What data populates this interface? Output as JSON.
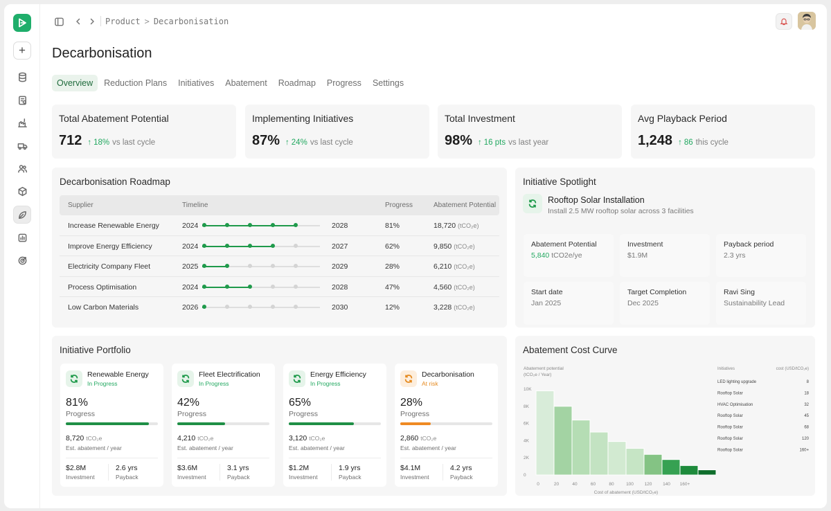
{
  "breadcrumb": {
    "parent": "Product",
    "current": "Decarbonisation"
  },
  "page": {
    "title": "Decarbonisation"
  },
  "tabs": [
    "Overview",
    "Reduction Plans",
    "Initiatives",
    "Abatement",
    "Roadmap",
    "Progress",
    "Settings"
  ],
  "kpis": [
    {
      "title": "Total Abatement Potential",
      "value": "712",
      "delta": "18%",
      "compare": "vs last cycle"
    },
    {
      "title": "Implementing Initiatives",
      "value": "87%",
      "delta": "24%",
      "compare": "vs last cycle"
    },
    {
      "title": "Total Investment",
      "value": "98%",
      "delta": "16 pts",
      "compare": "vs last year"
    },
    {
      "title": "Avg Playback Period",
      "value": "1,248",
      "delta": "86",
      "compare": "this cycle"
    }
  ],
  "roadmap": {
    "title": "Decarbonisation Roadmap",
    "columns": [
      "Supplier",
      "Timeline",
      "Progress",
      "Abatement Potential"
    ],
    "unit": "(tCO₂e)",
    "rows": [
      {
        "name": "Increase Renewable Energy",
        "start": "2024",
        "end": "2028",
        "progress": "81%",
        "abatement": "18,720",
        "milestones_done": 5
      },
      {
        "name": "Improve Energy Efficiency",
        "start": "2024",
        "end": "2027",
        "progress": "62%",
        "abatement": "9,850",
        "milestones_done": 4
      },
      {
        "name": "Electricity Company Fleet",
        "start": "2025",
        "end": "2029",
        "progress": "28%",
        "abatement": "6,210",
        "milestones_done": 2
      },
      {
        "name": "Process Optimisation",
        "start": "2024",
        "end": "2028",
        "progress": "47%",
        "abatement": "4,560",
        "milestones_done": 3
      },
      {
        "name": "Low Carbon Materials",
        "start": "2026",
        "end": "2030",
        "progress": "12%",
        "abatement": "3,228",
        "milestones_done": 1
      }
    ]
  },
  "spotlight": {
    "title": "Initiative Spotlight",
    "name": "Rooftop Solar Installation",
    "description": "Install 2.5 MW rooftop solar across 3 facilities",
    "abatement_label": "Abatement Potential",
    "abatement_value": "5,840",
    "abatement_unit": "tCO2e/ye",
    "investment_label": "Investment",
    "investment_value": "$1.9M",
    "payback_label": "Payback period",
    "payback_value": "2.3 yrs",
    "start_label": "Start date",
    "start_value": "Jan 2025",
    "target_label": "Target Completion",
    "target_value": "Dec 2025",
    "owner_name": "Ravi Sing",
    "owner_role": "Sustainability Lead"
  },
  "portfolio": {
    "title": "Initiative Portfolio",
    "progress_label": "Progress",
    "abatement_unit": "tCO₂e",
    "abatement_label": "Est. abatement / year",
    "investment_label": "Investment",
    "payback_label": "Payback",
    "cards": [
      {
        "name": "Renewable Energy",
        "status": "In Progress",
        "progress": "81%",
        "fill": 0.9,
        "abatement": "8,720",
        "investment": "$2.8M",
        "payback": "2.6 yrs",
        "risk": false
      },
      {
        "name": "Fleet Electrification",
        "status": "In Progress",
        "progress": "42%",
        "fill": 0.52,
        "abatement": "4,210",
        "investment": "$3.6M",
        "payback": "3.1 yrs",
        "risk": false
      },
      {
        "name": "Energy Efficiency",
        "status": "In Progress",
        "progress": "65%",
        "fill": 0.71,
        "abatement": "3,120",
        "investment": "$1.2M",
        "payback": "1.9 yrs",
        "risk": false
      },
      {
        "name": "Decarbonisation",
        "status": "At risk",
        "progress": "28%",
        "fill": 0.33,
        "abatement": "2,860",
        "investment": "$4.1M",
        "payback": "4.2 yrs",
        "risk": true
      }
    ]
  },
  "cost_curve": {
    "title": "Abatement Cost Curve",
    "chart_data": {
      "type": "bar",
      "ylabel": "Abatement potential (tCO₂e / Year)",
      "xlabel": "Cost of abatement (USD/tCO₂e)",
      "y_ticks": [
        "10K",
        "8K",
        "6K",
        "4K",
        "2K",
        "0"
      ],
      "x_ticks": [
        "0",
        "20",
        "40",
        "60",
        "80",
        "100",
        "120",
        "140",
        "160+"
      ],
      "ylim": [
        0,
        10000
      ],
      "bars": [
        {
          "value": 9800,
          "color": "#d8ecd9"
        },
        {
          "value": 8000,
          "color": "#a3d3a3"
        },
        {
          "value": 6400,
          "color": "#b5ddb4"
        },
        {
          "value": 5000,
          "color": "#c3e3c2"
        },
        {
          "value": 3900,
          "color": "#d2ead1"
        },
        {
          "value": 3100,
          "color": "#c6e5c5"
        },
        {
          "value": 2400,
          "color": "#84c384"
        },
        {
          "value": 1800,
          "color": "#36a152"
        },
        {
          "value": 1100,
          "color": "#1e8b3c"
        },
        {
          "value": 600,
          "color": "#0f6e2c"
        }
      ],
      "legend_header": [
        "Initiatives",
        "cost (USD/tCO₂e)"
      ],
      "legend": [
        {
          "name": "LED lighting upgrade",
          "cost": "8"
        },
        {
          "name": "Rooftop Solar",
          "cost": "18"
        },
        {
          "name": "HVAC Optimisation",
          "cost": "32"
        },
        {
          "name": "Rooftop Solar",
          "cost": "45"
        },
        {
          "name": "Rooftop Solar",
          "cost": "68"
        },
        {
          "name": "Rooftop Solar",
          "cost": "120"
        },
        {
          "name": "Rooftop Solar",
          "cost": "160+"
        }
      ]
    }
  },
  "colors": {
    "accent": "#1fae6b",
    "positive": "#22a860",
    "warning": "#e58a1f"
  },
  "icons": [
    "logo-icon",
    "plus-icon",
    "database-icon",
    "clipboard-icon",
    "factory-icon",
    "truck-icon",
    "users-icon",
    "box-icon",
    "leaf-icon",
    "chart-icon",
    "target-icon",
    "sidebar-toggle-icon",
    "chevron-left-icon",
    "chevron-right-icon",
    "bell-icon",
    "refresh-icon"
  ]
}
